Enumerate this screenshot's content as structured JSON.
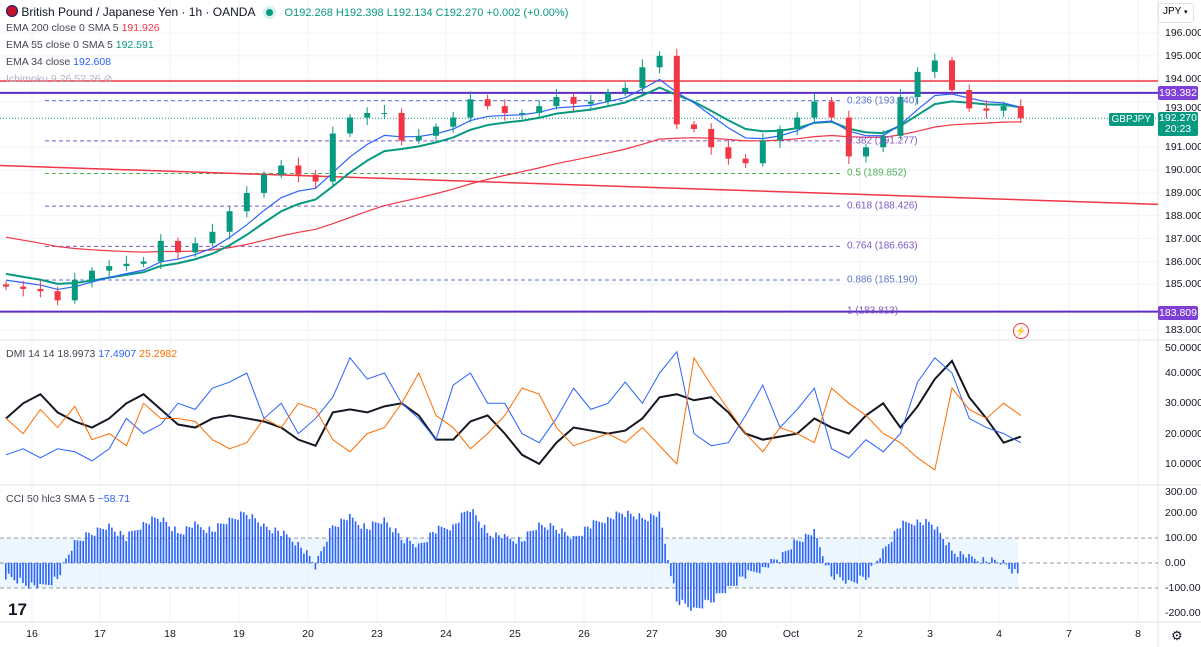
{
  "header": {
    "symbol": "British Pound / Japanese Yen · 1h · OANDA",
    "open": "O192.268",
    "high": "H192.398",
    "low": "L192.134",
    "close": "C192.270",
    "change": "+0.002 (+0.00%)"
  },
  "indicators": {
    "ema200": {
      "label": "EMA 200 close 0 SMA 5",
      "value": "191.926",
      "color": "#f23645"
    },
    "ema55": {
      "label": "EMA 55 close 0 SMA 5",
      "value": "192.591",
      "color": "#089981"
    },
    "ema34": {
      "label": "EMA 34 close",
      "value": "192.608",
      "color": "#2962ff"
    },
    "ichimoku": {
      "label": "Ichimoku 9 26 52 26"
    },
    "dmi": {
      "label": "DMI 14 14",
      "adx": "18.9973",
      "plus": "17.4907",
      "minus": "25.2982"
    },
    "cci": {
      "label": "CCI 50 hlc3 SMA 5",
      "value": "−58.71"
    }
  },
  "currency_button": "JPY",
  "price_tags": {
    "symbol": "GBPJPY",
    "last": "192.270",
    "countdown": "20:23",
    "upper_line": "193.382",
    "lower_line": "183.809"
  },
  "colors": {
    "up": "#089981",
    "down": "#f23645",
    "hline": "#7e3fd6",
    "resistance": "#f23645"
  },
  "chart_data": [
    {
      "type": "candlestick",
      "title": "GBPJPY 1h",
      "ylim": [
        183,
        196
      ],
      "y_ticks": [
        "196.000",
        "195.000",
        "194.000",
        "193.000",
        "191.000",
        "190.000",
        "189.000",
        "188.000",
        "187.000",
        "186.000",
        "185.000",
        "183.000"
      ],
      "closes": [
        184.9,
        184.8,
        184.7,
        184.3,
        185.2,
        185.6,
        185.8,
        185.9,
        186.0,
        186.9,
        186.4,
        186.8,
        187.3,
        188.2,
        189.0,
        189.8,
        190.2,
        189.8,
        189.5,
        191.6,
        192.3,
        192.5,
        192.5,
        191.3,
        191.5,
        191.9,
        192.3,
        193.1,
        192.8,
        192.5,
        192.5,
        192.8,
        193.2,
        192.9,
        193.0,
        193.4,
        193.6,
        194.5,
        195.0,
        192.0,
        191.8,
        191.0,
        190.5,
        190.3,
        191.3,
        191.8,
        192.3,
        193.0,
        192.3,
        190.6,
        191.0,
        191.5,
        193.2,
        194.3,
        194.8,
        193.5,
        192.7,
        192.6,
        192.8,
        192.27
      ],
      "horizontal_lines": [
        193.9,
        193.382,
        183.809
      ],
      "trendline": [
        190.2,
        188.5
      ],
      "fib_levels": [
        {
          "label": "0.236 (193.040)",
          "price": 193.04,
          "color": "#5a78c8"
        },
        {
          "label": "0.382 (191.277)",
          "price": 191.277,
          "color": "#7e57c2"
        },
        {
          "label": "0.5 (189.852)",
          "price": 189.852,
          "color": "#4caf50"
        },
        {
          "label": "0.618 (188.426)",
          "price": 188.426,
          "color": "#7e57c2"
        },
        {
          "label": "0.764 (186.663)",
          "price": 186.663,
          "color": "#7e57c2"
        },
        {
          "label": "0.886 (185.190)",
          "price": 185.19,
          "color": "#5a78c8"
        },
        {
          "label": "1 (183.813)",
          "price": 183.813,
          "color": "#7e57c2"
        }
      ]
    },
    {
      "type": "line",
      "title": "DMI 14 14",
      "ylim": [
        5,
        50
      ],
      "y_ticks": [
        "50.0000",
        "40.0000",
        "30.0000",
        "20.0000",
        "10.0000"
      ],
      "series": [
        {
          "name": "ADX",
          "color": "#131722",
          "values": [
            25,
            30,
            33,
            27,
            24,
            22,
            25,
            30,
            33,
            28,
            23,
            22,
            25,
            26,
            25,
            24,
            22,
            18,
            16,
            27,
            28,
            27,
            29,
            30,
            26,
            18,
            18,
            24,
            26,
            20,
            13,
            10,
            17,
            22,
            21,
            20,
            21,
            25,
            32,
            33,
            31,
            32,
            27,
            20,
            18,
            19,
            20,
            25,
            22,
            20,
            26,
            30,
            22,
            29,
            38,
            44,
            32,
            25,
            17,
            19
          ]
        },
        {
          "name": "+DI",
          "color": "#2962ff",
          "values": [
            13,
            15,
            12,
            15,
            14,
            11,
            15,
            25,
            20,
            23,
            30,
            28,
            35,
            37,
            40,
            25,
            30,
            20,
            25,
            32,
            45,
            38,
            40,
            30,
            25,
            18,
            36,
            40,
            30,
            30,
            20,
            17,
            25,
            35,
            28,
            30,
            37,
            30,
            40,
            47,
            20,
            16,
            17,
            26,
            36,
            22,
            28,
            35,
            15,
            12,
            18,
            14,
            20,
            37,
            45,
            40,
            25,
            22,
            20,
            17
          ]
        },
        {
          "name": "-DI",
          "color": "#ff6d00",
          "values": [
            25,
            20,
            28,
            22,
            29,
            18,
            20,
            16,
            30,
            25,
            25,
            24,
            18,
            15,
            17,
            25,
            22,
            30,
            28,
            18,
            14,
            20,
            22,
            30,
            40,
            26,
            22,
            15,
            20,
            26,
            35,
            33,
            22,
            16,
            18,
            20,
            17,
            22,
            16,
            10,
            45,
            36,
            28,
            20,
            14,
            22,
            20,
            17,
            35,
            30,
            26,
            20,
            17,
            12,
            8,
            35,
            28,
            25,
            30,
            26
          ]
        }
      ]
    },
    {
      "type": "bar",
      "title": "CCI 50 hlc3 SMA 5",
      "ylim": [
        -250,
        300
      ],
      "y_ticks": [
        "300.00",
        "200.00",
        "100.00",
        "0.00",
        "-100.00",
        "-200.00"
      ],
      "bands": [
        100,
        -100
      ],
      "values": [
        -50,
        -80,
        -100,
        -60,
        80,
        120,
        150,
        100,
        160,
        180,
        120,
        150,
        130,
        170,
        200,
        150,
        120,
        80,
        -10,
        150,
        180,
        140,
        170,
        100,
        70,
        130,
        150,
        220,
        120,
        100,
        90,
        150,
        140,
        100,
        150,
        180,
        200,
        180,
        190,
        -150,
        -190,
        -150,
        -100,
        -50,
        -20,
        20,
        90,
        120,
        -50,
        -80,
        -60,
        50,
        150,
        170,
        150,
        50,
        20,
        10,
        0,
        -60
      ]
    }
  ],
  "x_axis": {
    "labels": [
      "16",
      "17",
      "18",
      "19",
      "20",
      "23",
      "24",
      "25",
      "26",
      "27",
      "30",
      "Oct",
      "2",
      "3",
      "4",
      "7",
      "8"
    ]
  }
}
